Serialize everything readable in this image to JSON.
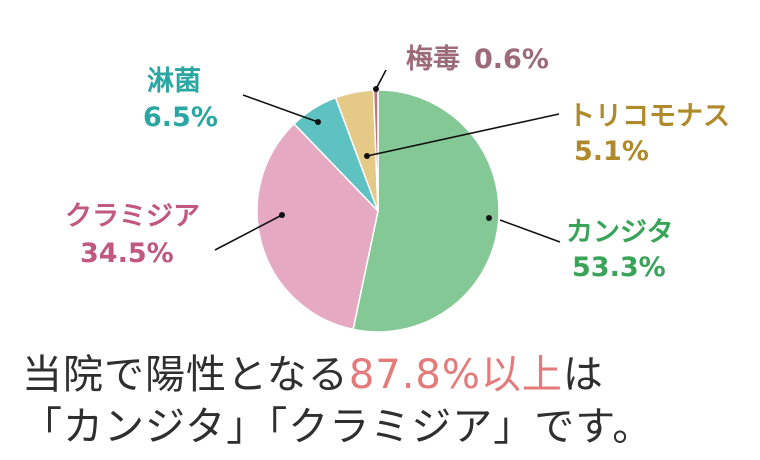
{
  "chart_data": {
    "type": "pie",
    "slices": [
      {
        "name": "カンジタ",
        "value": 53.3,
        "label": "53.3%",
        "color": "#84c995",
        "label_color": "#3aa35a"
      },
      {
        "name": "クラミジア",
        "value": 34.5,
        "label": "34.5%",
        "color": "#e5a9c1",
        "label_color": "#c0587f"
      },
      {
        "name": "淋菌",
        "value": 6.5,
        "label": "6.5%",
        "color": "#5fc2c2",
        "label_color": "#2aa7a2"
      },
      {
        "name": "トリコモナス",
        "value": 5.1,
        "label": "5.1%",
        "color": "#e4c987",
        "label_color": "#b08a2a"
      },
      {
        "name": "梅毒",
        "value": 0.6,
        "label": "0.6%",
        "color": "#b07a86",
        "label_color": "#9c6b78"
      }
    ]
  },
  "caption": {
    "line1_pre": "当院で陽性となる",
    "line1_highlight": "87.8%以上",
    "line1_post": "は",
    "line2": "「カンジタ」「クラミジア」です。"
  }
}
